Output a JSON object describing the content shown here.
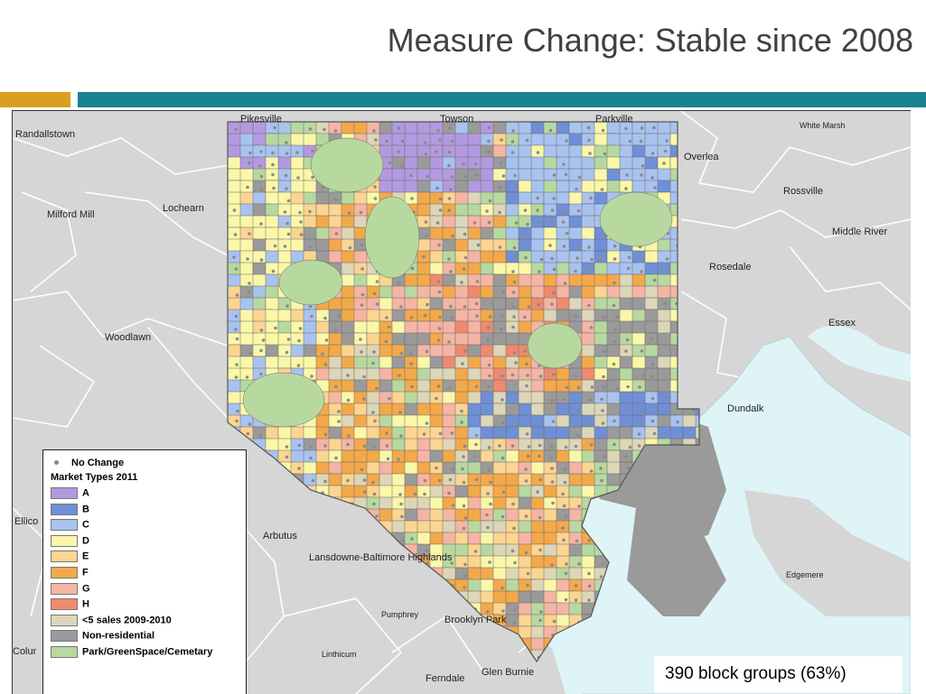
{
  "slide": {
    "title": "Measure Change: Stable since 2008"
  },
  "map": {
    "places": [
      {
        "name": "Randallstown",
        "key": "randallstown"
      },
      {
        "name": "Pikesville",
        "key": "pikesville"
      },
      {
        "name": "Towson",
        "key": "towson"
      },
      {
        "name": "Parkville",
        "key": "parkville"
      },
      {
        "name": "White Marsh",
        "key": "white-marsh"
      },
      {
        "name": "Overlea",
        "key": "overlea"
      },
      {
        "name": "Rossville",
        "key": "rossville"
      },
      {
        "name": "Milford Mill",
        "key": "milford-mill"
      },
      {
        "name": "Lochearn",
        "key": "lochearn"
      },
      {
        "name": "Middle River",
        "key": "middle-river"
      },
      {
        "name": "Rosedale",
        "key": "rosedale"
      },
      {
        "name": "Essex",
        "key": "essex"
      },
      {
        "name": "Woodlawn",
        "key": "woodlawn"
      },
      {
        "name": "Dundalk",
        "key": "dundalk"
      },
      {
        "name": "Ellico",
        "key": "ellicott"
      },
      {
        "name": "Arbutus",
        "key": "arbutus"
      },
      {
        "name": "Lansdowne-Baltimore Highlands",
        "key": "lansdowne"
      },
      {
        "name": "Edgemere",
        "key": "edgemere"
      },
      {
        "name": "Pumphrey",
        "key": "pumphrey"
      },
      {
        "name": "Brooklyn Park",
        "key": "brooklyn-park"
      },
      {
        "name": "Colur",
        "key": "columbia"
      },
      {
        "name": "Linthicum",
        "key": "linthicum"
      },
      {
        "name": "Ferndale",
        "key": "ferndale"
      },
      {
        "name": "Glen Burnie",
        "key": "glen-burnie"
      }
    ],
    "colors": {
      "A": "#b39ae0",
      "B": "#6f8fd6",
      "C": "#a9c3ef",
      "D": "#fbf7a9",
      "E": "#fbd591",
      "F": "#f3a94a",
      "G": "#f5b5a4",
      "H": "#ee8a6f",
      "few_sales": "#ddd6b8",
      "non_residential": "#9a9a9a",
      "park": "#b7d9a0",
      "water": "#dff4f6",
      "background": "#d6d6d6",
      "boundary": "#555555"
    }
  },
  "legend": {
    "no_change_label": "No Change",
    "title": "Market Types 2011",
    "items": [
      {
        "label": "A",
        "color": "#b39ae0"
      },
      {
        "label": "B",
        "color": "#6f8fd6"
      },
      {
        "label": "C",
        "color": "#a9c3ef"
      },
      {
        "label": "D",
        "color": "#fbf7a9"
      },
      {
        "label": "E",
        "color": "#fbd591"
      },
      {
        "label": "F",
        "color": "#f3a94a"
      },
      {
        "label": "G",
        "color": "#f5b5a4"
      },
      {
        "label": "H",
        "color": "#ee8a6f"
      },
      {
        "label": "<5 sales 2009-2010",
        "color": "#ddd6b8"
      },
      {
        "label": "Non-residential",
        "color": "#9a9a9a"
      },
      {
        "label": "Park/GreenSpace/Cemetary",
        "color": "#b7d9a0"
      }
    ]
  },
  "caption": "390 block groups (63%)"
}
